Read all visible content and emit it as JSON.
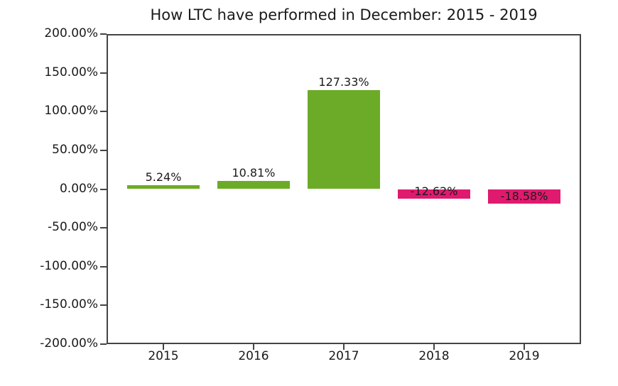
{
  "figure": {
    "background": "#ffffff"
  },
  "chart_data": {
    "type": "bar",
    "title": "How LTC have performed in December: 2015 - 2019",
    "categories": [
      "2015",
      "2016",
      "2017",
      "2018",
      "2019"
    ],
    "values": [
      5.24,
      10.81,
      127.33,
      -12.62,
      -18.58
    ],
    "bar_labels": [
      "5.24%",
      "10.81%",
      "127.33%",
      "-12.62%",
      "-18.58%"
    ],
    "xlabel": "",
    "ylabel": "",
    "ylim": [
      -200,
      200
    ],
    "ytick_interval": 50,
    "ytick_labels": [
      "200.00%",
      "150.00%",
      "100.00%",
      "50.00%",
      "0.00%",
      "-50.00%",
      "-100.00%",
      "-150.00%",
      "-200.00%"
    ],
    "grid": false,
    "legend_position": "none",
    "colors": {
      "positive_bar": "#6cab27",
      "negative_bar": "#e01a6f",
      "text": "#1a1a1a",
      "spine": "#444444"
    }
  }
}
